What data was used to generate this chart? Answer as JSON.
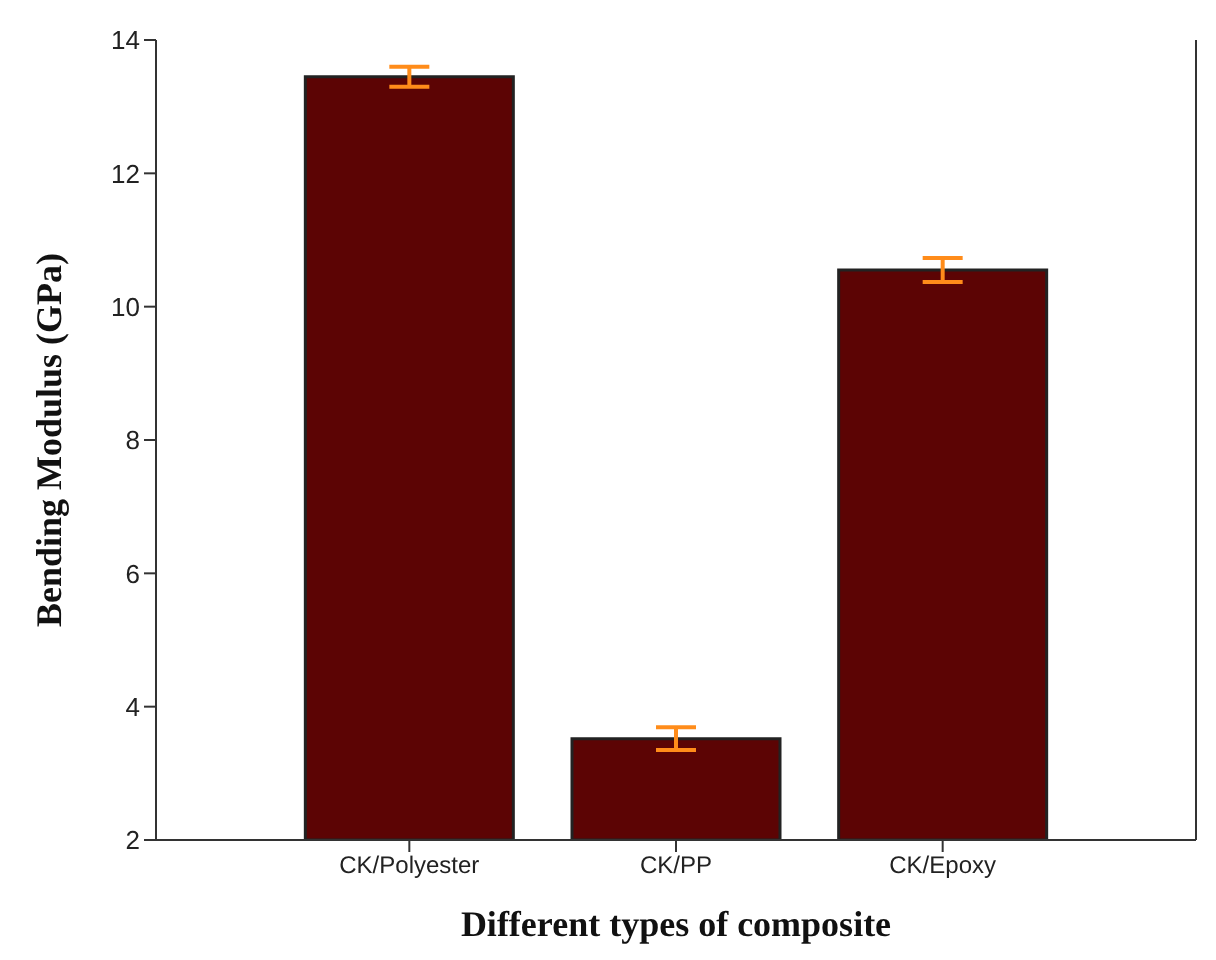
{
  "chart_data": {
    "type": "bar",
    "xlabel": "Different types of composite",
    "ylabel": "Bending Modulus (GPa)",
    "categories": [
      "CK/Polyester",
      "CK/PP",
      "CK/Epoxy"
    ],
    "values": [
      13.45,
      3.52,
      10.55
    ],
    "errors": [
      0.15,
      0.17,
      0.18
    ],
    "color": "#5c0404",
    "ylim": [
      2,
      14
    ],
    "yticks": [
      2,
      4,
      6,
      8,
      10,
      12,
      14
    ]
  }
}
